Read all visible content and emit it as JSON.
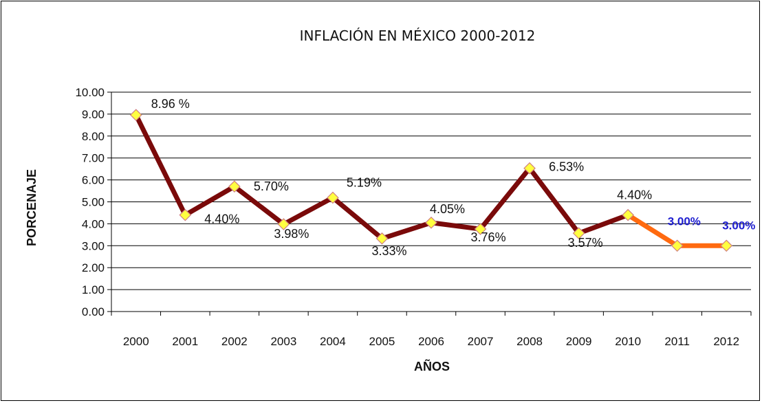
{
  "chart_data": {
    "type": "line",
    "title": "INFLACIÓN EN MÉXICO 2000-2012",
    "xlabel": "AÑOS",
    "ylabel": "PORCENAJE",
    "categories": [
      "2000",
      "2001",
      "2002",
      "2003",
      "2004",
      "2005",
      "2006",
      "2007",
      "2008",
      "2009",
      "2010",
      "2011",
      "2012"
    ],
    "ylim": [
      0,
      10
    ],
    "yticks": [
      "0.00",
      "1.00",
      "2.00",
      "3.00",
      "4.00",
      "5.00",
      "6.00",
      "7.00",
      "8.00",
      "9.00",
      "10.00"
    ],
    "grid": true,
    "legend": "none",
    "series": [
      {
        "values": [
          8.96,
          4.4,
          5.7,
          3.98,
          5.19,
          3.33,
          4.05,
          3.76,
          6.53,
          3.57,
          4.4,
          3.0,
          3.0
        ],
        "labels": [
          "8.96 %",
          "4.40%",
          "5.70%",
          "3.98%",
          "5.19%",
          "3.33%",
          "4.05%",
          "3.76%",
          "6.53%",
          "3.57%",
          "4.40%",
          "3.00%",
          "3.00%"
        ],
        "line_color": "#7a0a0a",
        "projected_from_index": 10,
        "projected_color": "#ff6a10",
        "marker_fill": "#ffff40",
        "marker_stroke": "#d08080",
        "label_color": "#111111",
        "projected_label_color": "#1f1fd0"
      }
    ]
  }
}
